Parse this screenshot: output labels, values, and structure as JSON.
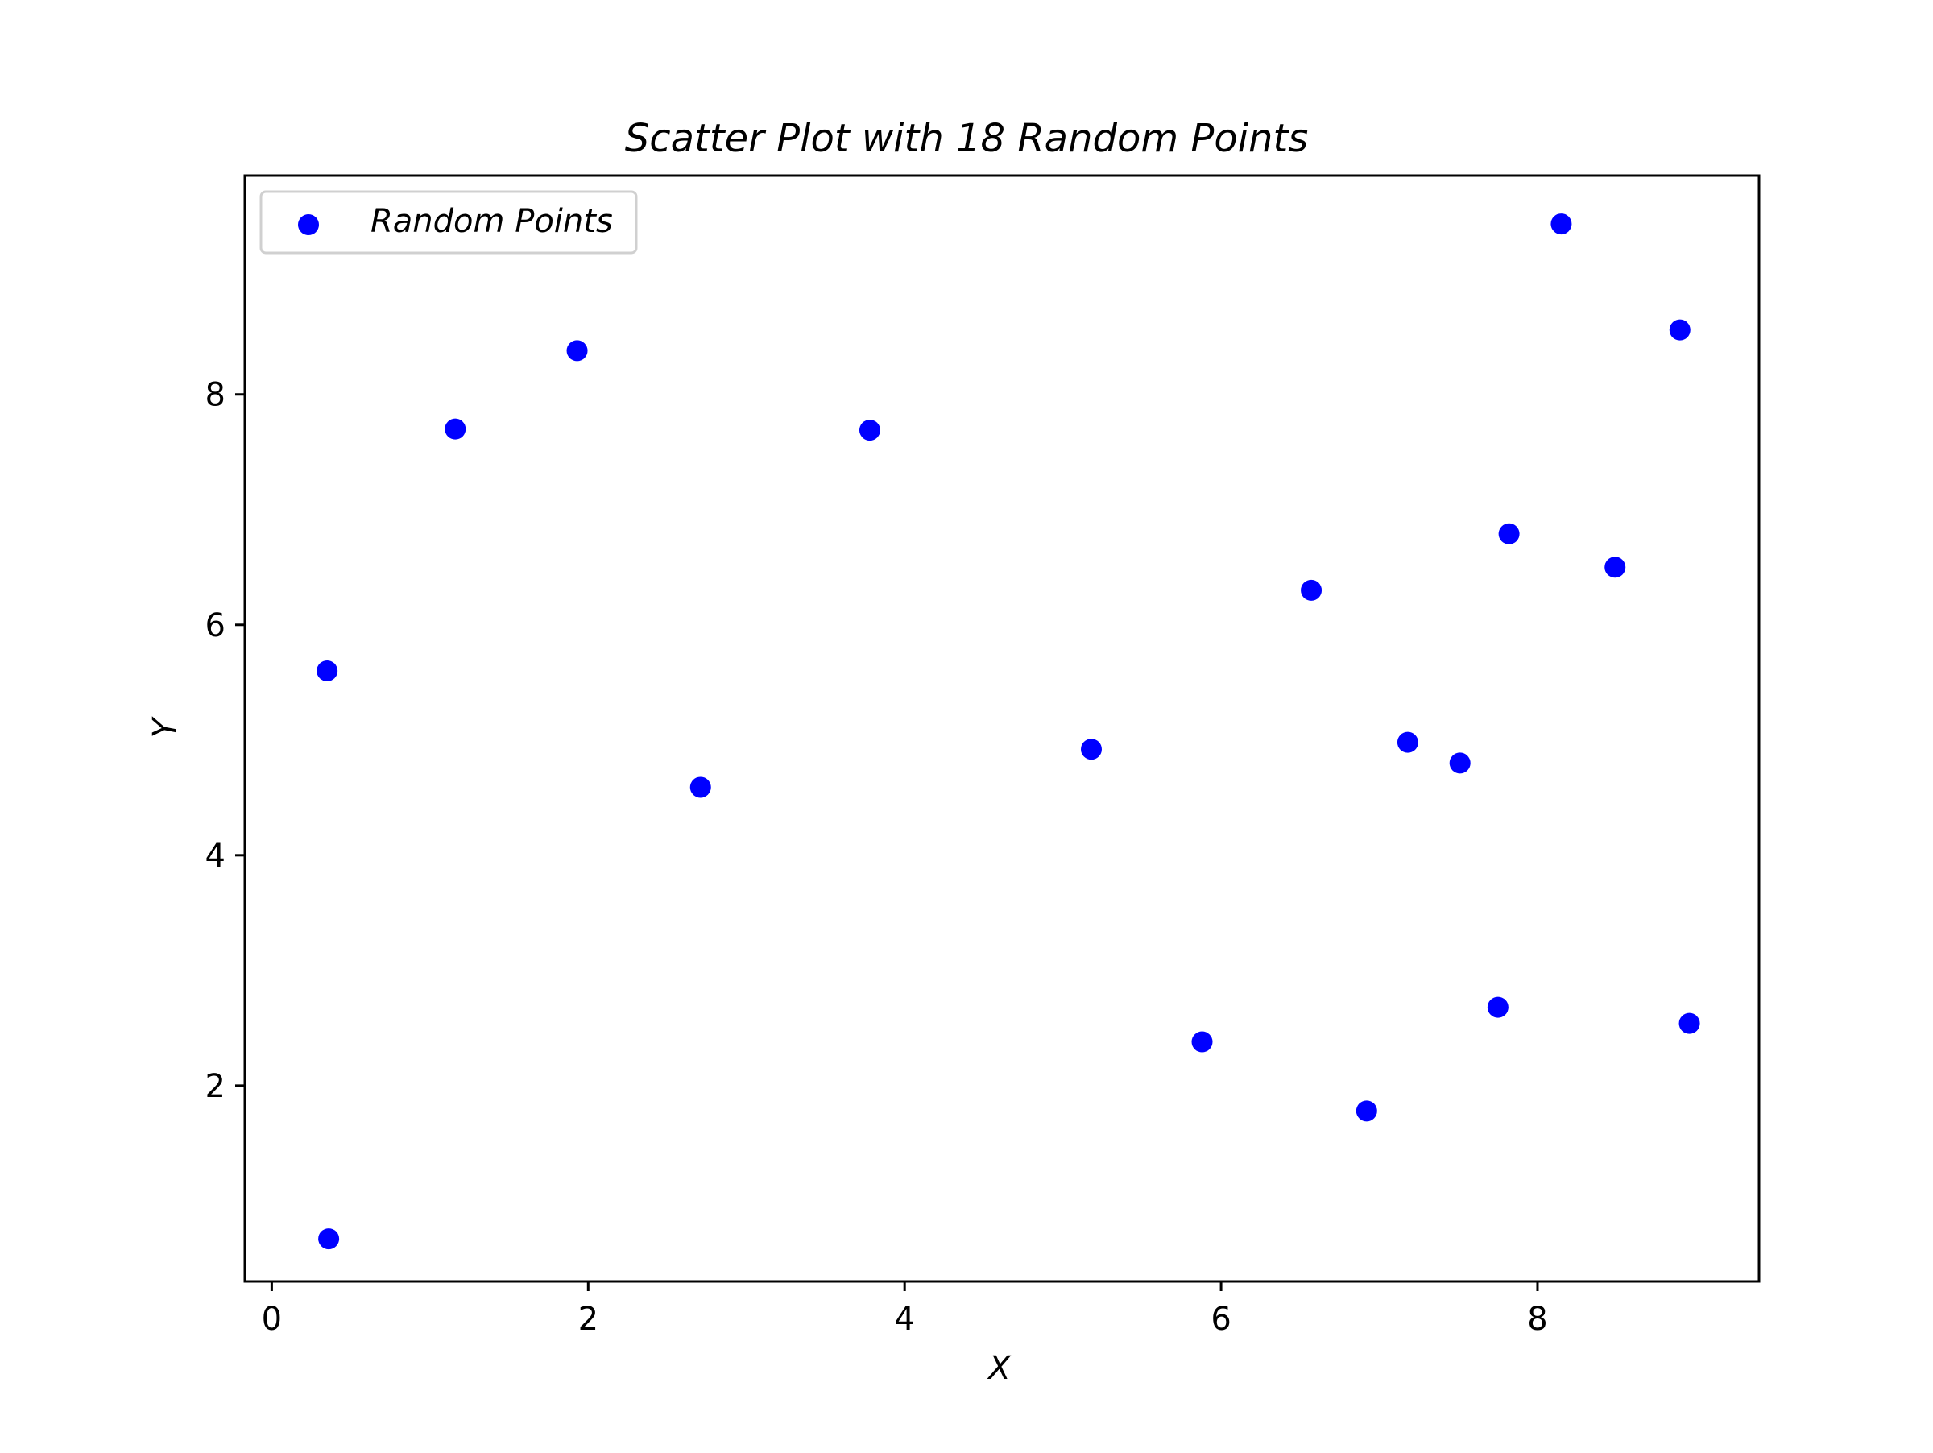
{
  "chart_data": {
    "type": "scatter",
    "title": "Scatter Plot with 18 Random Points",
    "xlabel": "X",
    "ylabel": "Y",
    "xlim": [
      -0.17,
      9.4
    ],
    "ylim": [
      0.3,
      9.9
    ],
    "xticks": [
      0,
      2,
      4,
      6,
      8
    ],
    "yticks": [
      2,
      4,
      6,
      8
    ],
    "xtick_labels": [
      "0",
      "2",
      "4",
      "6",
      "8"
    ],
    "ytick_labels": [
      "2",
      "4",
      "6",
      "8"
    ],
    "grid": false,
    "legend": {
      "position": "upper-left",
      "entries": [
        "Random Points"
      ]
    },
    "series": [
      {
        "name": "Random Points",
        "color": "#0000ff",
        "marker": "circle",
        "points": [
          {
            "x": 0.36,
            "y": 0.67
          },
          {
            "x": 0.35,
            "y": 5.6
          },
          {
            "x": 1.16,
            "y": 7.7
          },
          {
            "x": 1.93,
            "y": 8.38
          },
          {
            "x": 2.71,
            "y": 4.59
          },
          {
            "x": 3.78,
            "y": 7.69
          },
          {
            "x": 5.18,
            "y": 4.92
          },
          {
            "x": 5.88,
            "y": 2.38
          },
          {
            "x": 6.57,
            "y": 6.3
          },
          {
            "x": 6.92,
            "y": 1.78
          },
          {
            "x": 7.18,
            "y": 4.98
          },
          {
            "x": 7.51,
            "y": 4.8
          },
          {
            "x": 7.75,
            "y": 2.68
          },
          {
            "x": 7.82,
            "y": 6.79
          },
          {
            "x": 8.15,
            "y": 9.48
          },
          {
            "x": 8.49,
            "y": 6.5
          },
          {
            "x": 8.9,
            "y": 8.56
          },
          {
            "x": 8.96,
            "y": 2.54
          }
        ]
      }
    ]
  }
}
